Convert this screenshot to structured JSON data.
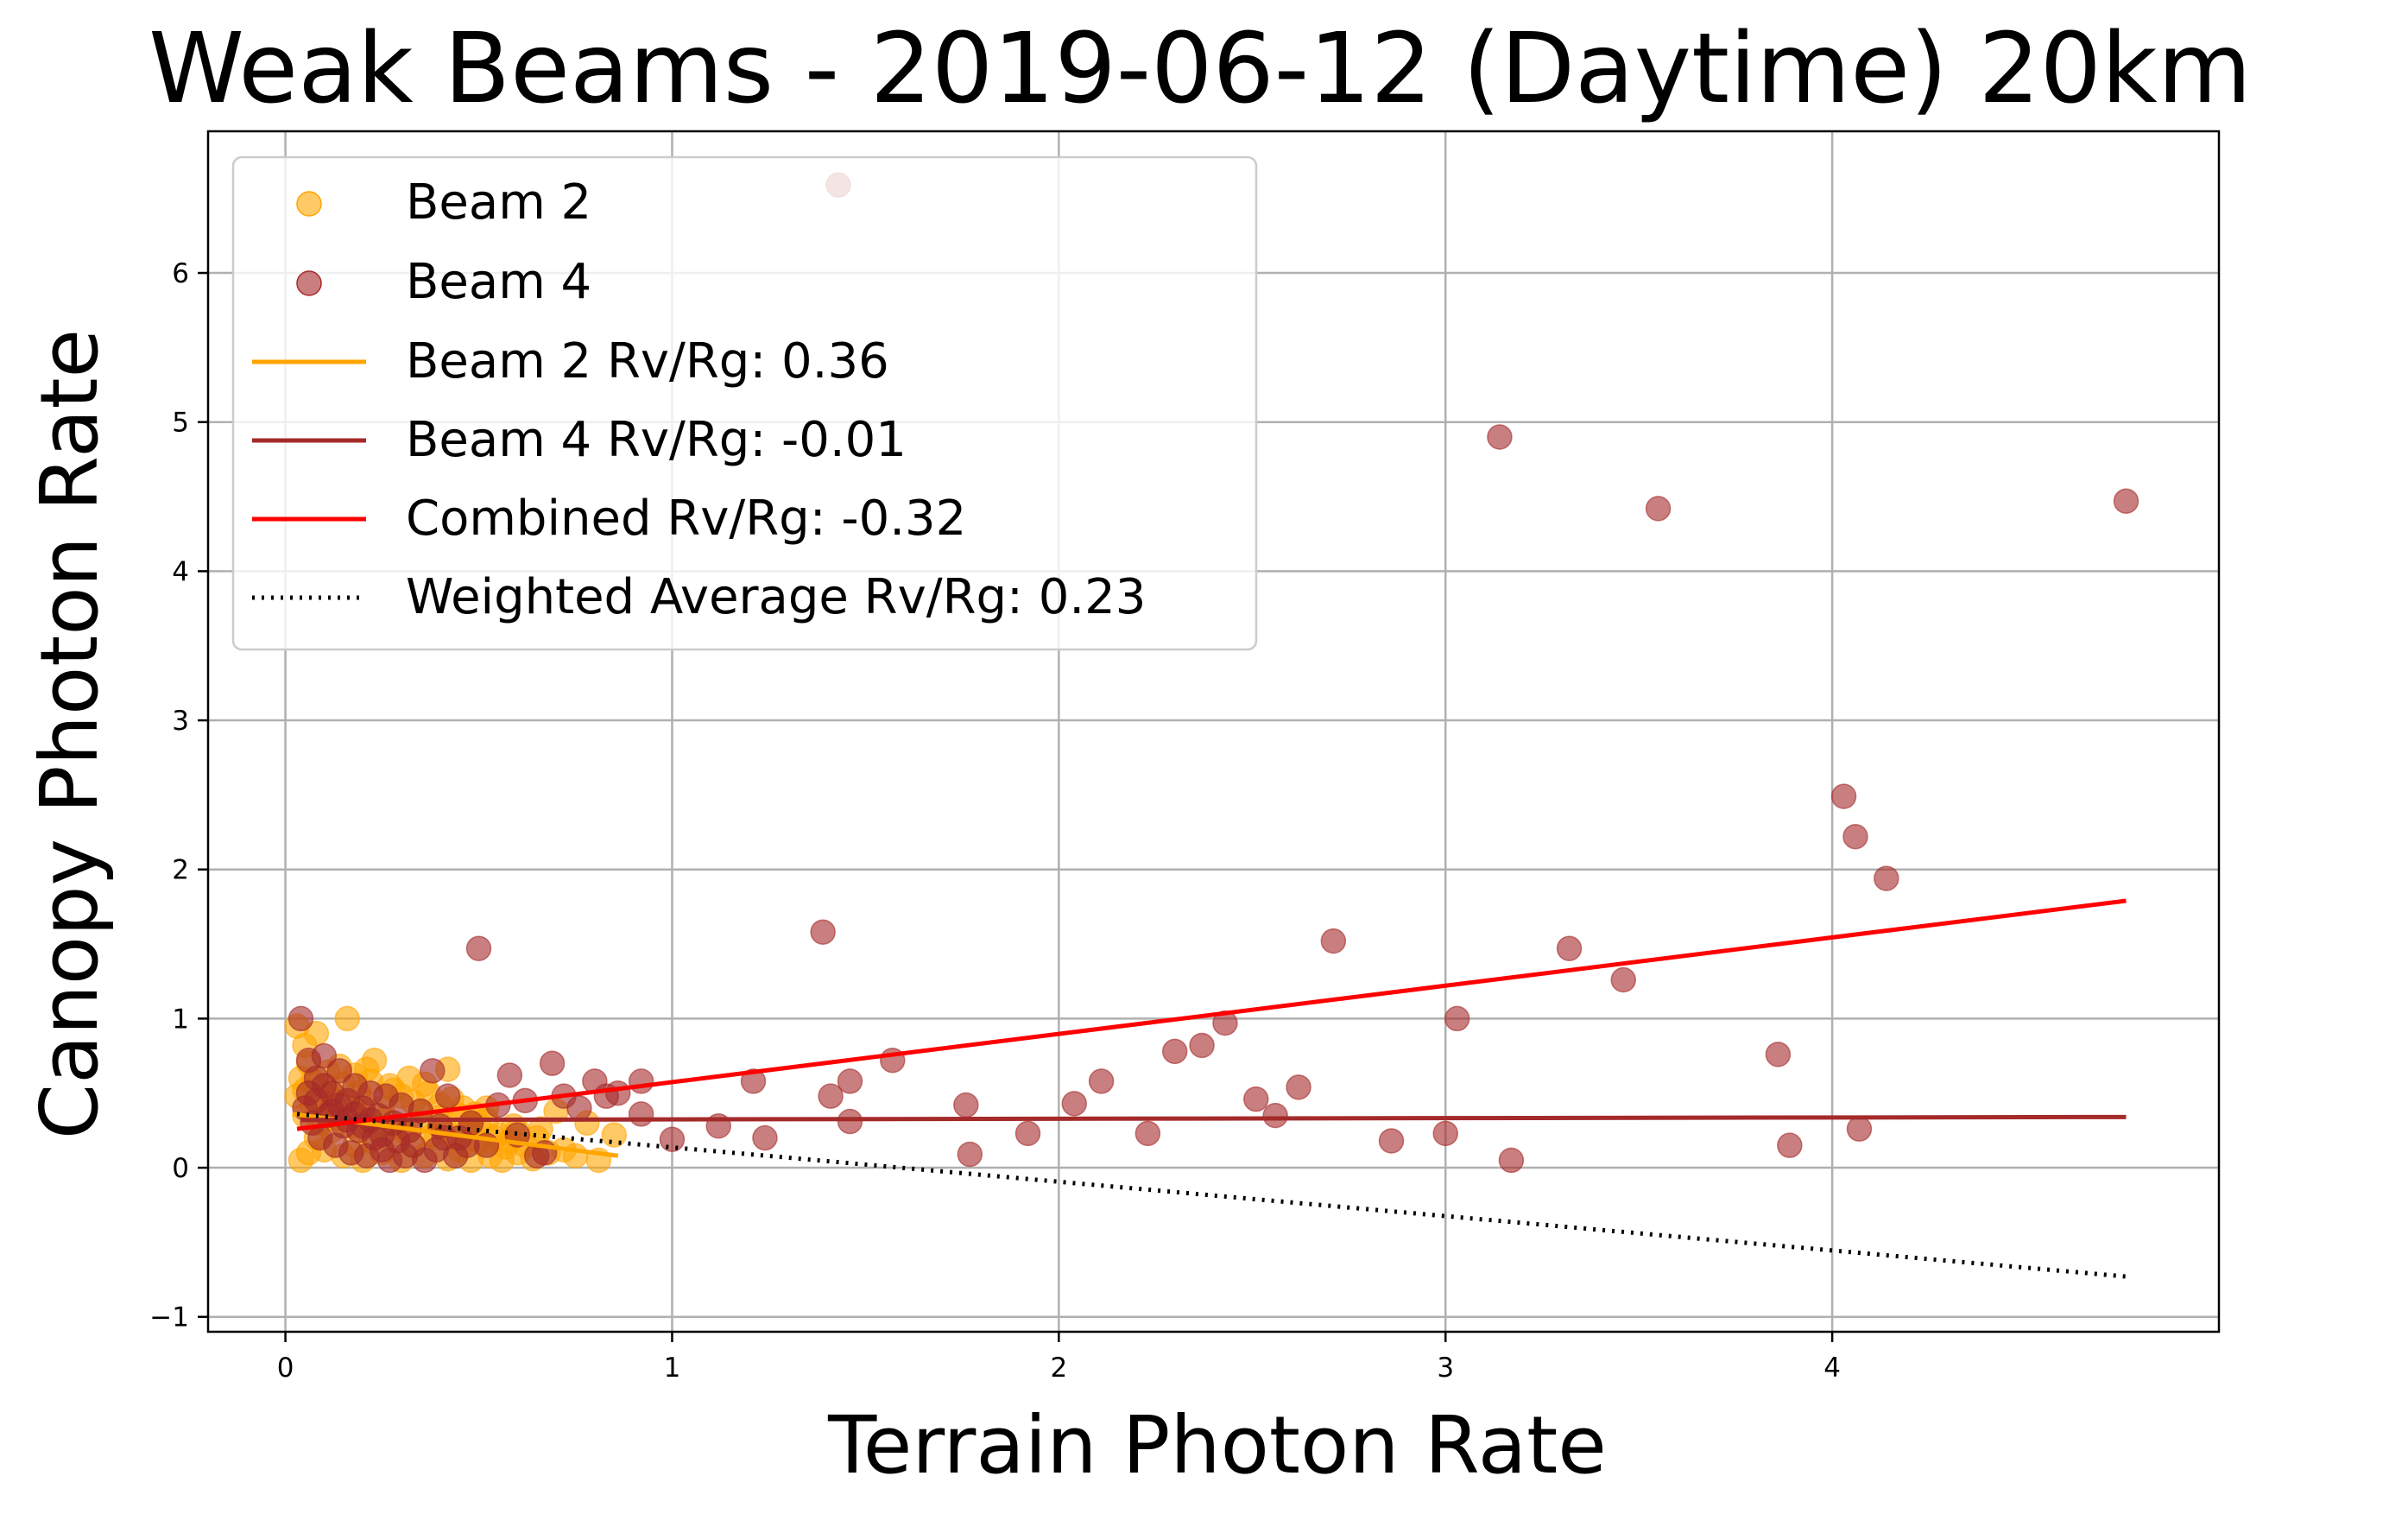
{
  "chart_data": {
    "type": "scatter",
    "title": "Weak Beams - 2019-06-12 (Daytime) 20km",
    "xlabel": "Terrain Photon Rate",
    "ylabel": "Canopy Photon Rate",
    "xlim": [
      -0.2,
      5.0
    ],
    "ylim": [
      -1.1,
      6.95
    ],
    "xticks": [
      0,
      1,
      2,
      3,
      4
    ],
    "yticks": [
      -1,
      0,
      1,
      2,
      3,
      4,
      5,
      6
    ],
    "ytick_labels": [
      "−1",
      "0",
      "1",
      "2",
      "3",
      "4",
      "5",
      "6"
    ],
    "grid": true,
    "legend_position": "upper left",
    "series": [
      {
        "name": "Beam 2",
        "kind": "scatter",
        "color": "#ffa500",
        "points": [
          [
            0.03,
            0.95
          ],
          [
            0.05,
            0.82
          ],
          [
            0.08,
            0.9
          ],
          [
            0.06,
            0.7
          ],
          [
            0.04,
            0.6
          ],
          [
            0.1,
            0.55
          ],
          [
            0.12,
            0.5
          ],
          [
            0.14,
            0.68
          ],
          [
            0.16,
            1.0
          ],
          [
            0.18,
            0.62
          ],
          [
            0.2,
            0.45
          ],
          [
            0.22,
            0.58
          ],
          [
            0.23,
            0.72
          ],
          [
            0.25,
            0.4
          ],
          [
            0.27,
            0.55
          ],
          [
            0.3,
            0.48
          ],
          [
            0.32,
            0.6
          ],
          [
            0.35,
            0.38
          ],
          [
            0.37,
            0.5
          ],
          [
            0.4,
            0.42
          ],
          [
            0.42,
            0.66
          ],
          [
            0.45,
            0.35
          ],
          [
            0.48,
            0.3
          ],
          [
            0.5,
            0.28
          ],
          [
            0.52,
            0.4
          ],
          [
            0.55,
            0.22
          ],
          [
            0.58,
            0.18
          ],
          [
            0.6,
            0.25
          ],
          [
            0.62,
            0.15
          ],
          [
            0.65,
            0.2
          ],
          [
            0.68,
            0.1
          ],
          [
            0.7,
            0.38
          ],
          [
            0.72,
            0.12
          ],
          [
            0.75,
            0.08
          ],
          [
            0.78,
            0.3
          ],
          [
            0.81,
            0.05
          ],
          [
            0.85,
            0.22
          ],
          [
            0.04,
            0.05
          ],
          [
            0.06,
            0.1
          ],
          [
            0.08,
            0.2
          ],
          [
            0.1,
            0.12
          ],
          [
            0.12,
            0.25
          ],
          [
            0.15,
            0.08
          ],
          [
            0.18,
            0.15
          ],
          [
            0.2,
            0.05
          ],
          [
            0.22,
            0.18
          ],
          [
            0.25,
            0.1
          ],
          [
            0.28,
            0.22
          ],
          [
            0.3,
            0.05
          ],
          [
            0.33,
            0.15
          ],
          [
            0.36,
            0.08
          ],
          [
            0.39,
            0.2
          ],
          [
            0.42,
            0.06
          ],
          [
            0.45,
            0.12
          ],
          [
            0.48,
            0.05
          ],
          [
            0.5,
            0.18
          ],
          [
            0.53,
            0.08
          ],
          [
            0.56,
            0.05
          ],
          [
            0.6,
            0.1
          ],
          [
            0.64,
            0.06
          ],
          [
            0.05,
            0.35
          ],
          [
            0.07,
            0.42
          ],
          [
            0.09,
            0.3
          ],
          [
            0.11,
            0.38
          ],
          [
            0.13,
            0.33
          ],
          [
            0.17,
            0.28
          ],
          [
            0.19,
            0.36
          ],
          [
            0.21,
            0.3
          ],
          [
            0.24,
            0.26
          ],
          [
            0.26,
            0.33
          ],
          [
            0.29,
            0.28
          ],
          [
            0.31,
            0.24
          ],
          [
            0.34,
            0.3
          ],
          [
            0.38,
            0.22
          ],
          [
            0.41,
            0.27
          ],
          [
            0.44,
            0.2
          ],
          [
            0.47,
            0.25
          ],
          [
            0.51,
            0.16
          ],
          [
            0.54,
            0.2
          ],
          [
            0.57,
            0.14
          ],
          [
            0.03,
            0.48
          ],
          [
            0.05,
            0.52
          ],
          [
            0.07,
            0.58
          ],
          [
            0.09,
            0.46
          ],
          [
            0.11,
            0.64
          ],
          [
            0.13,
            0.44
          ],
          [
            0.15,
            0.56
          ],
          [
            0.17,
            0.4
          ],
          [
            0.19,
            0.5
          ],
          [
            0.21,
            0.66
          ],
          [
            0.28,
            0.52
          ],
          [
            0.33,
            0.44
          ],
          [
            0.36,
            0.56
          ],
          [
            0.4,
            0.34
          ],
          [
            0.43,
            0.46
          ],
          [
            0.46,
            0.4
          ],
          [
            0.49,
            0.36
          ],
          [
            0.52,
            0.32
          ],
          [
            0.59,
            0.28
          ],
          [
            0.66,
            0.26
          ]
        ]
      },
      {
        "name": "Beam 4",
        "kind": "scatter",
        "color": "#a52a2a",
        "points": [
          [
            0.04,
            1.0
          ],
          [
            0.06,
            0.72
          ],
          [
            0.08,
            0.6
          ],
          [
            0.1,
            0.75
          ],
          [
            0.12,
            0.5
          ],
          [
            0.14,
            0.65
          ],
          [
            0.16,
            0.45
          ],
          [
            0.18,
            0.55
          ],
          [
            0.2,
            0.4
          ],
          [
            0.22,
            0.5
          ],
          [
            0.24,
            0.35
          ],
          [
            0.26,
            0.48
          ],
          [
            0.28,
            0.3
          ],
          [
            0.3,
            0.42
          ],
          [
            0.32,
            0.25
          ],
          [
            0.35,
            0.38
          ],
          [
            0.38,
            0.65
          ],
          [
            0.4,
            0.28
          ],
          [
            0.42,
            0.48
          ],
          [
            0.45,
            0.2
          ],
          [
            0.48,
            0.3
          ],
          [
            0.5,
            1.47
          ],
          [
            0.52,
            0.15
          ],
          [
            0.55,
            0.42
          ],
          [
            0.58,
            0.62
          ],
          [
            0.6,
            0.22
          ],
          [
            0.62,
            0.45
          ],
          [
            0.65,
            0.08
          ],
          [
            0.67,
            0.1
          ],
          [
            0.69,
            0.7
          ],
          [
            0.72,
            0.48
          ],
          [
            0.76,
            0.4
          ],
          [
            0.8,
            0.58
          ],
          [
            0.83,
            0.48
          ],
          [
            0.86,
            0.5
          ],
          [
            0.92,
            0.58
          ],
          [
            0.92,
            0.36
          ],
          [
            1.0,
            0.19
          ],
          [
            1.12,
            0.28
          ],
          [
            1.21,
            0.58
          ],
          [
            1.24,
            0.2
          ],
          [
            1.39,
            1.58
          ],
          [
            1.41,
            0.48
          ],
          [
            1.43,
            6.59
          ],
          [
            1.46,
            0.58
          ],
          [
            1.46,
            0.31
          ],
          [
            1.57,
            0.72
          ],
          [
            1.76,
            0.42
          ],
          [
            1.77,
            0.09
          ],
          [
            1.92,
            0.23
          ],
          [
            2.04,
            0.43
          ],
          [
            2.11,
            0.58
          ],
          [
            2.23,
            0.23
          ],
          [
            2.3,
            0.78
          ],
          [
            2.37,
            0.82
          ],
          [
            2.43,
            0.97
          ],
          [
            2.51,
            0.46
          ],
          [
            2.56,
            0.35
          ],
          [
            2.62,
            0.54
          ],
          [
            2.71,
            1.52
          ],
          [
            2.86,
            0.18
          ],
          [
            3.0,
            0.23
          ],
          [
            3.03,
            1.0
          ],
          [
            3.14,
            4.9
          ],
          [
            3.17,
            0.05
          ],
          [
            3.32,
            1.47
          ],
          [
            3.46,
            1.26
          ],
          [
            3.55,
            4.42
          ],
          [
            3.86,
            0.76
          ],
          [
            3.89,
            0.15
          ],
          [
            4.03,
            2.49
          ],
          [
            4.06,
            2.22
          ],
          [
            4.07,
            0.26
          ],
          [
            4.14,
            1.94
          ],
          [
            4.76,
            4.47
          ],
          [
            0.05,
            0.4
          ],
          [
            0.07,
            0.3
          ],
          [
            0.09,
            0.2
          ],
          [
            0.11,
            0.35
          ],
          [
            0.13,
            0.15
          ],
          [
            0.15,
            0.28
          ],
          [
            0.17,
            0.1
          ],
          [
            0.19,
            0.25
          ],
          [
            0.21,
            0.08
          ],
          [
            0.23,
            0.2
          ],
          [
            0.25,
            0.12
          ],
          [
            0.27,
            0.05
          ],
          [
            0.29,
            0.18
          ],
          [
            0.31,
            0.08
          ],
          [
            0.33,
            0.15
          ],
          [
            0.36,
            0.05
          ],
          [
            0.39,
            0.12
          ],
          [
            0.41,
            0.2
          ],
          [
            0.44,
            0.08
          ],
          [
            0.47,
            0.15
          ],
          [
            0.06,
            0.5
          ],
          [
            0.08,
            0.45
          ],
          [
            0.1,
            0.55
          ],
          [
            0.12,
            0.38
          ],
          [
            0.14,
            0.42
          ],
          [
            0.16,
            0.32
          ],
          [
            0.18,
            0.36
          ],
          [
            0.2,
            0.28
          ],
          [
            0.22,
            0.32
          ],
          [
            0.25,
            0.22
          ]
        ]
      },
      {
        "name": "Beam 2 Rv/Rg: 0.36",
        "kind": "line",
        "color": "#ffa500",
        "style": "solid",
        "x": [
          0.02,
          0.86
        ],
        "y": [
          0.36,
          0.08
        ]
      },
      {
        "name": "Beam 4 Rv/Rg: -0.01",
        "kind": "line",
        "color": "#a52a2a",
        "style": "solid",
        "x": [
          0.04,
          4.76
        ],
        "y": [
          0.32,
          0.34
        ]
      },
      {
        "name": "Combined Rv/Rg: -0.32",
        "kind": "line",
        "color": "#ff0000",
        "style": "solid",
        "x": [
          0.03,
          4.76
        ],
        "y": [
          0.26,
          1.79
        ]
      },
      {
        "name": "Weighted Average Rv/Rg: 0.23",
        "kind": "line",
        "color": "#000000",
        "style": "dotted",
        "x": [
          0.03,
          4.76
        ],
        "y": [
          0.36,
          -0.73
        ]
      }
    ]
  }
}
